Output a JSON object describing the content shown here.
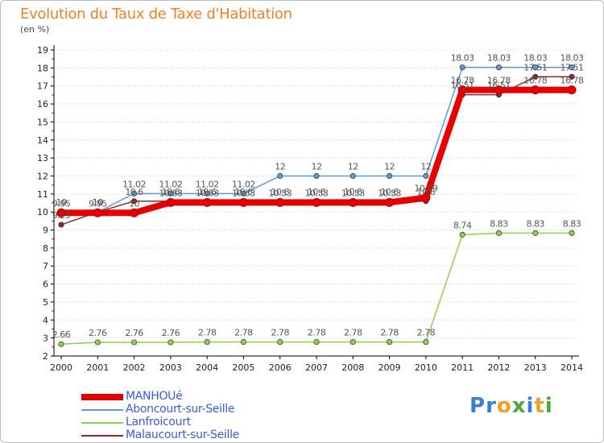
{
  "header": {
    "title": "Evolution du Taux de Taxe d'Habitation",
    "unit": "(en %)"
  },
  "colors": {
    "title": "#f07f24",
    "axis": "#000000",
    "grid": "#c8c8c8"
  },
  "logo": {
    "letters": [
      "P",
      "r",
      "o",
      "x",
      "i",
      "t",
      "i"
    ],
    "colors": [
      "#3b7fd1",
      "#3b7fd1",
      "#f0a020",
      "#4fa83d",
      "#3b7fd1",
      "#f0a020",
      "#4fa83d"
    ]
  },
  "chart_data": {
    "type": "line",
    "title": "Evolution du Taux de Taxe d'Habitation",
    "ylabel": "(en %)",
    "xlabel": "",
    "x": [
      "2000",
      "2001",
      "2002",
      "2003",
      "2004",
      "2005",
      "2006",
      "2007",
      "2008",
      "2009",
      "2010",
      "2011",
      "2012",
      "2013",
      "2014"
    ],
    "ylim": [
      2,
      19
    ],
    "yticks": [
      2,
      3,
      4,
      5,
      6,
      7,
      8,
      9,
      10,
      11,
      12,
      13,
      14,
      15,
      16,
      17,
      18,
      19
    ],
    "grid": "dotted horizontal",
    "legend_position": "bottom-left",
    "series": [
      {
        "name": "MANHOUé",
        "color": "#e80000",
        "width": 8,
        "values": [
          9.95,
          9.95,
          9.95,
          10.53,
          10.53,
          10.53,
          10.53,
          10.53,
          10.53,
          10.53,
          10.79,
          16.78,
          16.78,
          16.78,
          16.78
        ],
        "labels": [
          "9.95",
          "9.95",
          "10",
          "10.53",
          "10.53",
          "10.53",
          "10.53",
          "10.53",
          "10.53",
          "10.53",
          "10.79",
          "16.78",
          "16.78",
          "16.78",
          "16.78"
        ]
      },
      {
        "name": "Aboncourt-sur-Seille",
        "color": "#5a9bd5",
        "width": 1.5,
        "values": [
          10,
          10,
          11.02,
          11.02,
          11.02,
          11.02,
          12,
          12,
          12,
          12,
          12,
          18.03,
          18.03,
          18.03,
          18.03
        ],
        "labels": [
          "10",
          "10",
          "11.02",
          "11.02",
          "11.02",
          "11.02",
          "12",
          "12",
          "12",
          "12",
          "12",
          "18.03",
          "18.03",
          "18.03",
          "18.03"
        ]
      },
      {
        "name": "Lanfroicourt",
        "color": "#8ed14f",
        "width": 1.5,
        "values": [
          2.66,
          2.76,
          2.76,
          2.76,
          2.78,
          2.78,
          2.78,
          2.78,
          2.78,
          2.78,
          2.78,
          8.74,
          8.83,
          8.83,
          8.83
        ],
        "labels": [
          "2.66",
          "2.76",
          "2.76",
          "2.76",
          "2.78",
          "2.78",
          "2.78",
          "2.78",
          "2.78",
          "2.78",
          "2.78",
          "8.74",
          "8.83",
          "8.83",
          "8.83"
        ]
      },
      {
        "name": "Malaucourt-sur-Seille",
        "color": "#8b2c2c",
        "width": 1.5,
        "values": [
          9.29,
          10,
          10.6,
          10.6,
          10.6,
          10.6,
          10.6,
          10.6,
          10.6,
          10.6,
          10.6,
          16.51,
          16.51,
          17.51,
          17.51
        ],
        "labels": [
          "9.29",
          "10",
          "10.6",
          "10.6",
          "10.6",
          "10.6",
          "10.6",
          "10.6",
          "10.6",
          "10.6",
          "10.6",
          "16.51",
          "16.51",
          "17.51",
          "17.51"
        ]
      }
    ]
  }
}
